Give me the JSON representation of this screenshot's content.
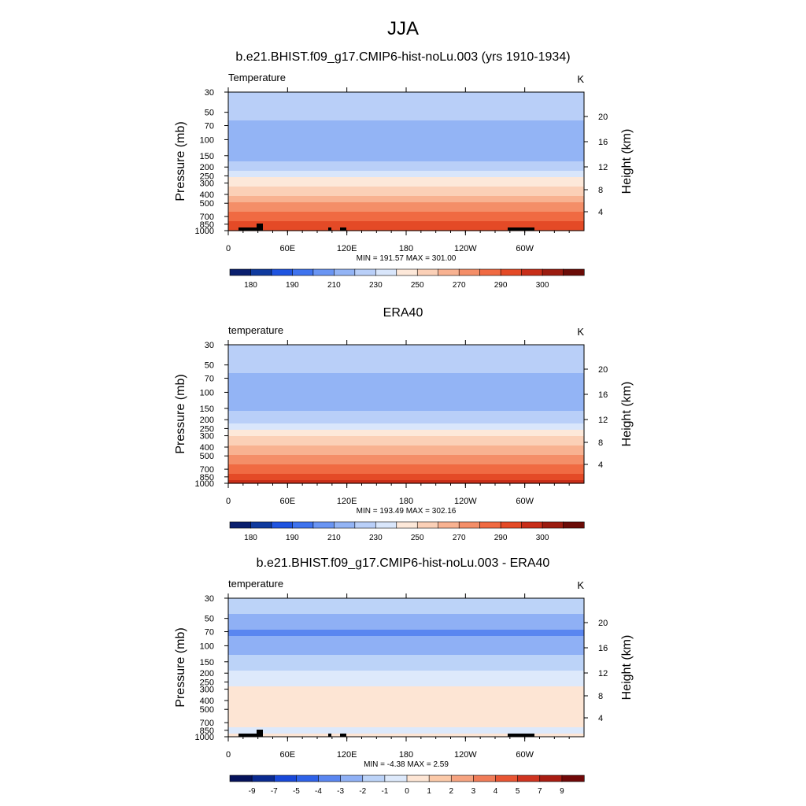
{
  "figure_title": "JJA",
  "colors": {
    "band_ramp": [
      "#0a1f6e",
      "#0f3a9e",
      "#1f54e0",
      "#3f73ee",
      "#6a95f3",
      "#93b4f5",
      "#b9cff8",
      "#d9e6fb",
      "#fde8d9",
      "#fbd0b7",
      "#f8b291",
      "#f48e68",
      "#f06a42",
      "#e44a26",
      "#c82e19",
      "#9c1c10",
      "#6b0c07"
    ],
    "diff_ramp": [
      "#05125a",
      "#0a2a90",
      "#1848d8",
      "#2e62e8",
      "#5a86f0",
      "#8fb0f5",
      "#bcd3f8",
      "#dde9fb",
      "#fde5d4",
      "#fbc9a8",
      "#f6a380",
      "#f07c58",
      "#e85533",
      "#cf3420",
      "#a81c12",
      "#700808"
    ],
    "topography": "#000000"
  },
  "chart_data": [
    {
      "type": "heatmap",
      "title": "b.e21.BHIST.f09_g17.CMIP6-hist-noLu.003 (yrs 1910-1934)",
      "left_label": "Temperature",
      "units_label": "K",
      "ylabel": "Pressure (mb)",
      "ylabel_right": "Height (km)",
      "xticks": [
        "0",
        "60E",
        "120E",
        "180",
        "120W",
        "60W"
      ],
      "yticks": [
        "30",
        "50",
        "70",
        "100",
        "150",
        "200",
        "250",
        "300",
        "400",
        "500",
        "700",
        "850",
        "1000"
      ],
      "yticks_right": [
        "20",
        "16",
        "12",
        "8",
        "4"
      ],
      "stats": "MIN = 191.57  MAX = 301.00",
      "min": 191.57,
      "max": 301.0,
      "colorbar_labels": [
        "180",
        "190",
        "210",
        "230",
        "250",
        "270",
        "290",
        "300"
      ],
      "colorbar_levels": [
        175,
        180,
        185,
        190,
        200,
        210,
        220,
        230,
        240,
        250,
        260,
        270,
        280,
        290,
        295,
        300
      ],
      "profile_pressure_mb": [
        30,
        50,
        70,
        100,
        150,
        200,
        250,
        300,
        400,
        500,
        700,
        850,
        1000
      ],
      "profile_temperature_K": [
        218,
        213,
        207,
        200,
        206,
        216,
        228,
        237,
        250,
        260,
        275,
        283,
        292
      ],
      "topography": true
    },
    {
      "type": "heatmap",
      "title": "ERA40",
      "left_label": "temperature",
      "units_label": "K",
      "ylabel": "Pressure (mb)",
      "ylabel_right": "Height (km)",
      "xticks": [
        "0",
        "60E",
        "120E",
        "180",
        "120W",
        "60W"
      ],
      "yticks": [
        "30",
        "50",
        "70",
        "100",
        "150",
        "200",
        "250",
        "300",
        "400",
        "500",
        "700",
        "850",
        "1000"
      ],
      "yticks_right": [
        "20",
        "16",
        "12",
        "8",
        "4"
      ],
      "stats": "MIN = 193.49  MAX = 302.16",
      "min": 193.49,
      "max": 302.16,
      "colorbar_labels": [
        "180",
        "190",
        "210",
        "230",
        "250",
        "270",
        "290",
        "300"
      ],
      "colorbar_levels": [
        175,
        180,
        185,
        190,
        200,
        210,
        220,
        230,
        240,
        250,
        260,
        270,
        280,
        290,
        295,
        300
      ],
      "profile_pressure_mb": [
        30,
        50,
        70,
        100,
        150,
        200,
        250,
        300,
        400,
        500,
        700,
        850,
        1000
      ],
      "profile_temperature_K": [
        218,
        214,
        208,
        202,
        207,
        217,
        229,
        238,
        251,
        261,
        276,
        284,
        293
      ],
      "topography": false
    },
    {
      "type": "heatmap",
      "title": "b.e21.BHIST.f09_g17.CMIP6-hist-noLu.003 - ERA40",
      "left_label": "temperature",
      "units_label": "K",
      "ylabel": "Pressure (mb)",
      "ylabel_right": "Height (km)",
      "xticks": [
        "0",
        "60E",
        "120E",
        "180",
        "120W",
        "60W"
      ],
      "yticks": [
        "30",
        "50",
        "70",
        "100",
        "150",
        "200",
        "250",
        "300",
        "400",
        "500",
        "700",
        "850",
        "1000"
      ],
      "yticks_right": [
        "20",
        "16",
        "12",
        "8",
        "4"
      ],
      "stats": "MIN =  -4.38  MAX =   2.59",
      "min": -4.38,
      "max": 2.59,
      "colorbar_labels": [
        "-9",
        "-7",
        "-5",
        "-4",
        "-3",
        "-2",
        "-1",
        "0",
        "1",
        "2",
        "3",
        "4",
        "5",
        "7",
        "9"
      ],
      "colorbar_levels": [
        -9,
        -7,
        -5,
        -4,
        -3,
        -2,
        -1,
        0,
        1,
        2,
        3,
        4,
        5,
        7,
        9
      ],
      "profile_pressure_mb": [
        30,
        50,
        70,
        100,
        150,
        200,
        250,
        300,
        400,
        500,
        700,
        850,
        1000
      ],
      "profile_temperature_K": [
        -1.2,
        -2.2,
        -3.2,
        -2.4,
        -1.6,
        -0.8,
        -0.4,
        0.4,
        0.8,
        0.6,
        0.3,
        -0.3,
        0.2
      ],
      "topography": true
    }
  ]
}
